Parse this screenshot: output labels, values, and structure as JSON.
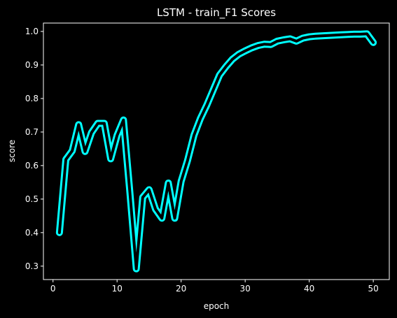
{
  "chart_data": {
    "type": "line",
    "title": "LSTM - train_F1 Scores",
    "xlabel": "epoch",
    "ylabel": "score",
    "xlim": [
      -1.5,
      52.5
    ],
    "ylim": [
      0.26,
      1.025
    ],
    "x_ticks": [
      0,
      10,
      20,
      30,
      40,
      50
    ],
    "y_ticks": [
      0.3,
      0.4,
      0.5,
      0.6,
      0.7,
      0.8,
      0.9,
      1.0
    ],
    "x_tick_labels": [
      "0",
      "10",
      "20",
      "30",
      "40",
      "50"
    ],
    "y_tick_labels": [
      "0.3",
      "0.4",
      "0.5",
      "0.6",
      "0.7",
      "0.8",
      "0.9",
      "1.0"
    ],
    "grid": false,
    "background": "#000000",
    "series": [
      {
        "color": "#00ffff",
        "outline_color": "#00ffff",
        "x": [
          1,
          2,
          3,
          4,
          5,
          6,
          7,
          8,
          9,
          10,
          11,
          12,
          13,
          14,
          15,
          16,
          17,
          18,
          19,
          20,
          21,
          22,
          23,
          24,
          25,
          26,
          27,
          28,
          29,
          30,
          31,
          32,
          33,
          34,
          35,
          36,
          37,
          38,
          39,
          40,
          41,
          42,
          43,
          44,
          45,
          46,
          47,
          48,
          49,
          50
        ],
        "values": [
          0.4,
          0.618,
          0.644,
          0.722,
          0.642,
          0.698,
          0.726,
          0.726,
          0.62,
          0.69,
          0.736,
          0.52,
          0.292,
          0.505,
          0.528,
          0.47,
          0.443,
          0.548,
          0.443,
          0.553,
          0.615,
          0.69,
          0.74,
          0.78,
          0.825,
          0.87,
          0.895,
          0.917,
          0.932,
          0.942,
          0.951,
          0.958,
          0.962,
          0.961,
          0.971,
          0.975,
          0.978,
          0.971,
          0.98,
          0.984,
          0.986,
          0.987,
          0.988,
          0.989,
          0.99,
          0.991,
          0.992,
          0.992,
          0.993,
          0.967
        ]
      }
    ]
  }
}
